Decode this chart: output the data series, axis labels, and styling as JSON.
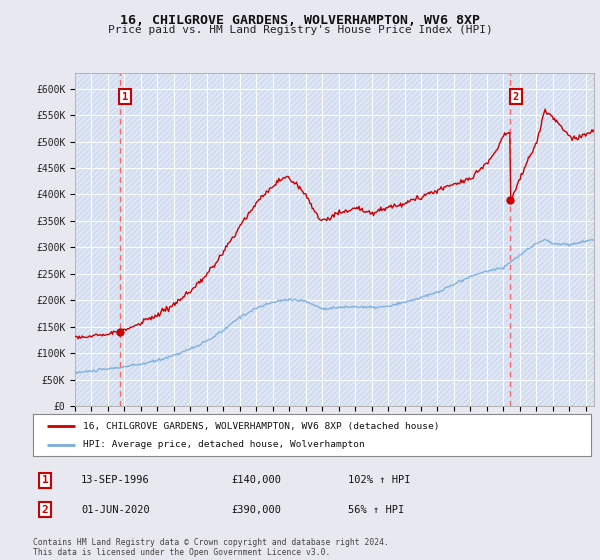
{
  "title": "16, CHILGROVE GARDENS, WOLVERHAMPTON, WV6 8XP",
  "subtitle": "Price paid vs. HM Land Registry's House Price Index (HPI)",
  "legend_line1": "16, CHILGROVE GARDENS, WOLVERHAMPTON, WV6 8XP (detached house)",
  "legend_line2": "HPI: Average price, detached house, Wolverhampton",
  "annotation1_date": "13-SEP-1996",
  "annotation1_price": "£140,000",
  "annotation1_hpi": "102% ↑ HPI",
  "annotation2_date": "01-JUN-2020",
  "annotation2_price": "£390,000",
  "annotation2_hpi": "56% ↑ HPI",
  "footer": "Contains HM Land Registry data © Crown copyright and database right 2024.\nThis data is licensed under the Open Government Licence v3.0.",
  "ylim": [
    0,
    630000
  ],
  "yticks": [
    0,
    50000,
    100000,
    150000,
    200000,
    250000,
    300000,
    350000,
    400000,
    450000,
    500000,
    550000,
    600000
  ],
  "xlim_start": 1994.0,
  "xlim_end": 2025.5,
  "red_line_color": "#cc0000",
  "blue_line_color": "#7aaddb",
  "marker_color": "#cc0000",
  "dashed_line_color": "#ff6666",
  "background_color": "#e8e8f0",
  "plot_bg_color": "#dce8f8",
  "grid_color": "#ffffff",
  "annotation_box_color": "#cc0000",
  "hatch_color": "#c8c8d8"
}
